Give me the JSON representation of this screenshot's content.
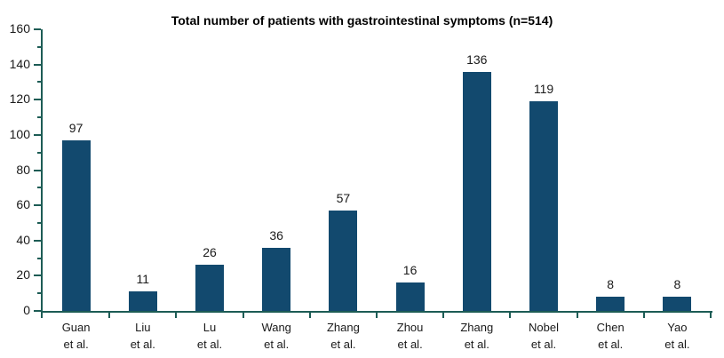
{
  "chart_data": {
    "type": "bar",
    "title": "Total number of patients with gastrointestinal symptoms (n=514)",
    "categories": [
      "Guan et al.",
      "Liu et al.",
      "Lu et al.",
      "Wang et al.",
      "Zhang et al.",
      "Zhou et al.",
      "Zhang et al.",
      "Nobel et al.",
      "Chen et al.",
      "Yao et al."
    ],
    "values": [
      97,
      11,
      26,
      36,
      57,
      16,
      136,
      119,
      8,
      8
    ],
    "value_labels_shown": true,
    "xlabel": "",
    "ylabel": "",
    "ylim": [
      0,
      160
    ],
    "yticks_major": [
      0,
      20,
      40,
      60,
      80,
      100,
      120,
      140,
      160
    ],
    "yticks_minor": [
      10,
      30,
      50,
      70,
      90,
      110,
      130,
      150
    ],
    "grid": false,
    "legend": false,
    "bar_color": "#12496e",
    "axis_color": "#1d5c55",
    "text_color": "#1a1a1a",
    "title_color": "#000000",
    "background_color": "#ffffff"
  }
}
